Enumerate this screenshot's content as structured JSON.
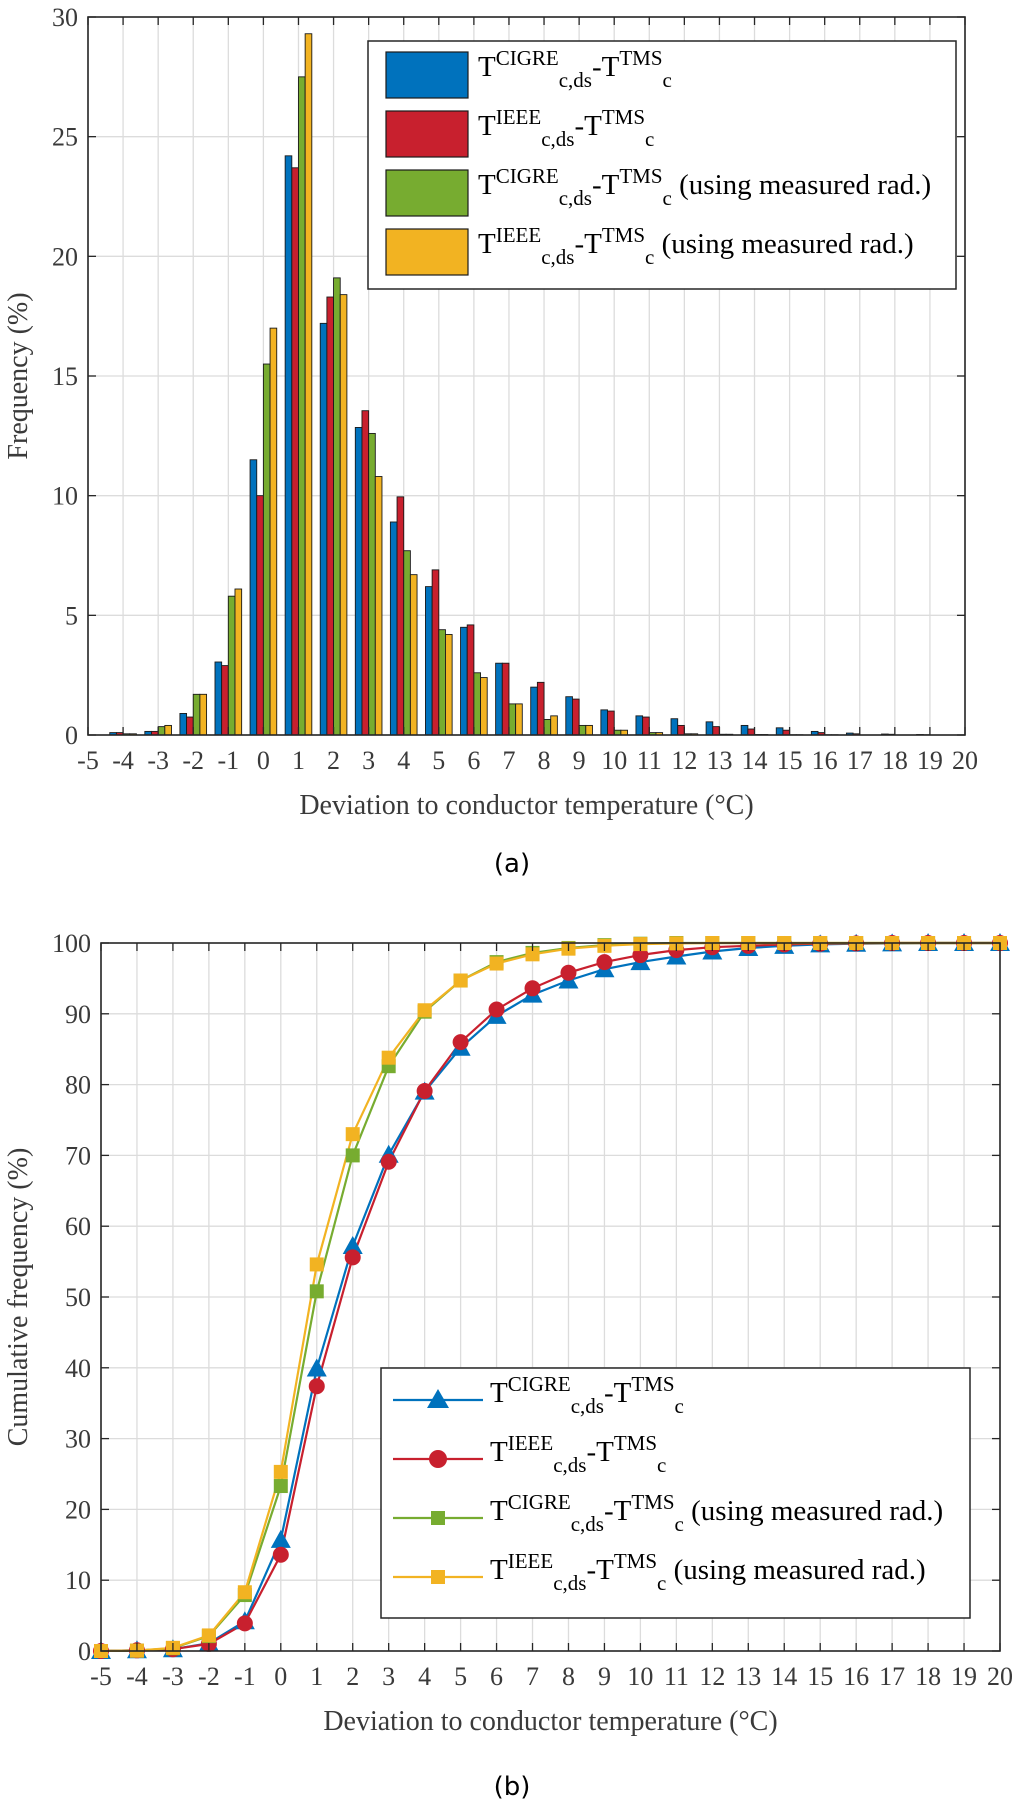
{
  "chart_data": [
    {
      "panel": "(a)",
      "type": "bar",
      "xlabel": "Deviation to conductor temperature (°C)",
      "ylabel": "Frequency (%)",
      "xlim": [
        -5,
        20
      ],
      "ylim": [
        0,
        30
      ],
      "xticks": [
        "-5",
        "-4",
        "-3",
        "-2",
        "-1",
        "0",
        "1",
        "2",
        "3",
        "4",
        "5",
        "6",
        "7",
        "8",
        "9",
        "10",
        "11",
        "12",
        "13",
        "14",
        "15",
        "16",
        "17",
        "18",
        "19",
        "20"
      ],
      "yticks": [
        "0",
        "5",
        "10",
        "15",
        "20",
        "25",
        "30"
      ],
      "grid": true,
      "legend_position": "top-right",
      "categories": [
        -4,
        -3,
        -2,
        -1,
        0,
        1,
        2,
        3,
        4,
        5,
        6,
        7,
        8,
        9,
        10,
        11,
        12,
        13,
        14,
        15,
        16,
        17,
        18,
        19
      ],
      "series": [
        {
          "T": "T",
          "sup": "CIGRE",
          "sub": "c,ds",
          "T2": "T",
          "sup2": "TMS",
          "sub2": "c",
          "suffix": "",
          "color": "#0072BD",
          "values": [
            0.1,
            0.15,
            0.9,
            3.05,
            11.5,
            24.2,
            17.2,
            12.85,
            8.9,
            6.2,
            4.5,
            3.0,
            2.0,
            1.6,
            1.05,
            0.8,
            0.68,
            0.55,
            0.4,
            0.3,
            0.15,
            0.08,
            0.04,
            0.02
          ]
        },
        {
          "T": "T",
          "sup": "IEEE",
          "sub": "c,ds",
          "T2": "T",
          "sup2": "TMS",
          "sub2": "c",
          "suffix": "",
          "color": "#C8202E",
          "values": [
            0.1,
            0.15,
            0.75,
            2.9,
            10.0,
            23.7,
            18.3,
            13.55,
            9.95,
            6.9,
            4.6,
            3.0,
            2.2,
            1.5,
            1.0,
            0.75,
            0.4,
            0.35,
            0.25,
            0.2,
            0.1,
            0.05,
            0.03,
            0.01
          ]
        },
        {
          "T": "T",
          "sup": "CIGRE",
          "sub": "c,ds",
          "T2": "T",
          "sup2": "TMS",
          "sub2": "c",
          "suffix": "(using measured rad.)",
          "color": "#77AC30",
          "values": [
            0.05,
            0.35,
            1.7,
            5.8,
            15.5,
            27.5,
            19.1,
            12.6,
            7.7,
            4.4,
            2.6,
            1.3,
            0.65,
            0.4,
            0.2,
            0.1,
            0.05,
            0.03,
            0.02,
            0.01,
            0.01,
            0,
            0,
            0
          ]
        },
        {
          "T": "T",
          "sup": "IEEE",
          "sub": "c,ds",
          "T2": "T",
          "sup2": "TMS",
          "sub2": "c",
          "suffix": "(using measured rad.)",
          "color": "#F2B322",
          "values": [
            0.05,
            0.4,
            1.7,
            6.1,
            17.0,
            29.3,
            18.4,
            10.8,
            6.7,
            4.2,
            2.4,
            1.3,
            0.8,
            0.4,
            0.2,
            0.1,
            0.05,
            0.03,
            0.02,
            0.01,
            0.01,
            0,
            0,
            0
          ]
        }
      ]
    },
    {
      "panel": "(b)",
      "type": "line",
      "xlabel": "Deviation to conductor temperature (°C)",
      "ylabel": "Cumulative frequency (%)",
      "xlim": [
        -5,
        20
      ],
      "ylim": [
        0,
        100
      ],
      "xticks": [
        "-5",
        "-4",
        "-3",
        "-2",
        "-1",
        "0",
        "1",
        "2",
        "3",
        "4",
        "5",
        "6",
        "7",
        "8",
        "9",
        "10",
        "11",
        "12",
        "13",
        "14",
        "15",
        "16",
        "17",
        "18",
        "19",
        "20"
      ],
      "yticks": [
        "0",
        "10",
        "20",
        "30",
        "40",
        "50",
        "60",
        "70",
        "80",
        "90",
        "100"
      ],
      "grid": true,
      "legend_position": "bottom-right",
      "x": [
        -5,
        -4,
        -3,
        -2,
        -1,
        0,
        1,
        2,
        3,
        4,
        5,
        6,
        7,
        8,
        9,
        10,
        11,
        12,
        13,
        14,
        15,
        16,
        17,
        18,
        19,
        20
      ],
      "series": [
        {
          "T": "T",
          "sup": "CIGRE",
          "sub": "c,ds",
          "T2": "T",
          "sup2": "TMS",
          "sub2": "c",
          "suffix": "",
          "color": "#0072BD",
          "marker": "triangle",
          "values": [
            0,
            0.1,
            0.25,
            1.1,
            4.2,
            15.7,
            39.9,
            57.2,
            70.1,
            79.0,
            85.2,
            89.7,
            92.7,
            94.7,
            96.3,
            97.3,
            98.1,
            98.8,
            99.3,
            99.6,
            99.8,
            99.9,
            99.95,
            100,
            100,
            100
          ]
        },
        {
          "T": "T",
          "sup": "IEEE",
          "sub": "c,ds",
          "T2": "T",
          "sup2": "TMS",
          "sub2": "c",
          "suffix": "",
          "color": "#C8202E",
          "marker": "circle",
          "values": [
            0,
            0.1,
            0.25,
            1.0,
            3.9,
            13.6,
            37.4,
            55.6,
            69.1,
            79.1,
            86.0,
            90.6,
            93.6,
            95.8,
            97.3,
            98.3,
            99.0,
            99.4,
            99.6,
            99.8,
            99.9,
            99.95,
            100,
            100,
            100,
            100
          ]
        },
        {
          "T": "T",
          "sup": "CIGRE",
          "sub": "c,ds",
          "T2": "T",
          "sup2": "TMS",
          "sub2": "c",
          "suffix": "(using measured rad.)",
          "color": "#77AC30",
          "marker": "square",
          "values": [
            0,
            0.05,
            0.4,
            2.1,
            7.9,
            23.3,
            50.8,
            70.0,
            82.6,
            90.3,
            94.7,
            97.3,
            98.6,
            99.3,
            99.7,
            99.9,
            100,
            100,
            100,
            100,
            100,
            100,
            100,
            100,
            100,
            100
          ]
        },
        {
          "T": "T",
          "sup": "IEEE",
          "sub": "c,ds",
          "T2": "T",
          "sup2": "TMS",
          "sub2": "c",
          "suffix": "(using measured rad.)",
          "color": "#F2B322",
          "marker": "square",
          "values": [
            0,
            0.05,
            0.45,
            2.2,
            8.3,
            25.3,
            54.6,
            73.0,
            83.8,
            90.5,
            94.7,
            97.1,
            98.4,
            99.2,
            99.6,
            99.85,
            99.95,
            100,
            100,
            100,
            100,
            100,
            100,
            100,
            100,
            100
          ]
        }
      ]
    }
  ]
}
